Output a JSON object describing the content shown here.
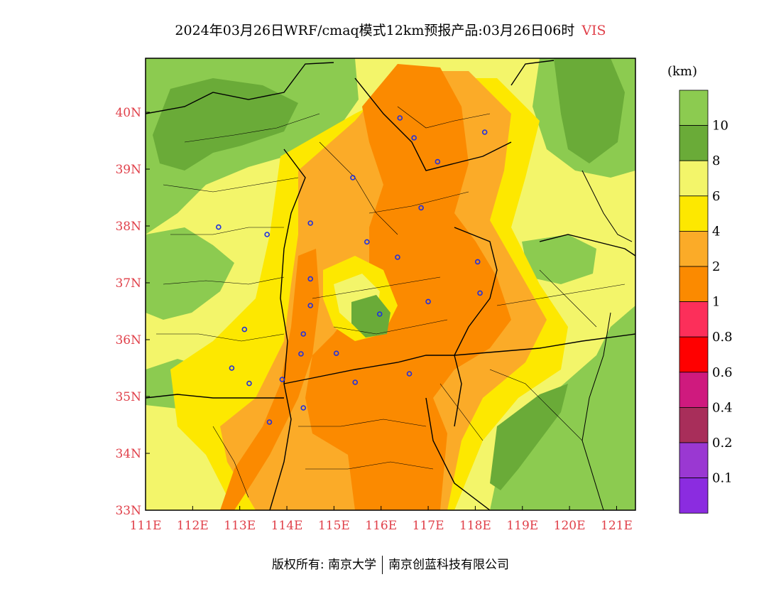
{
  "header": {
    "title": "2024年03月26日WRF/cmaq模式12km预报产品:03月26日06时",
    "variable": "VIS"
  },
  "map": {
    "lon_range": [
      111,
      121.4
    ],
    "lat_range": [
      33,
      40.95
    ],
    "x_ticks": [
      "111E",
      "112E",
      "113E",
      "114E",
      "115E",
      "116E",
      "117E",
      "118E",
      "119E",
      "120E",
      "121E"
    ],
    "y_ticks": [
      "33N",
      "34N",
      "35N",
      "36N",
      "37N",
      "38N",
      "39N",
      "40N"
    ],
    "tick_color": "#e0404a",
    "city_marker_color": "#2030e0",
    "city_markers": [
      {
        "lon": 116.4,
        "lat": 39.9
      },
      {
        "lon": 116.7,
        "lat": 39.55
      },
      {
        "lon": 117.2,
        "lat": 39.13
      },
      {
        "lon": 118.2,
        "lat": 39.65
      },
      {
        "lon": 115.4,
        "lat": 38.85
      },
      {
        "lon": 116.85,
        "lat": 38.32
      },
      {
        "lon": 112.55,
        "lat": 37.98
      },
      {
        "lon": 113.58,
        "lat": 37.85
      },
      {
        "lon": 114.5,
        "lat": 38.05
      },
      {
        "lon": 115.7,
        "lat": 37.72
      },
      {
        "lon": 116.35,
        "lat": 37.45
      },
      {
        "lon": 118.05,
        "lat": 37.37
      },
      {
        "lon": 114.5,
        "lat": 37.07
      },
      {
        "lon": 118.1,
        "lat": 36.82
      },
      {
        "lon": 117.0,
        "lat": 36.67
      },
      {
        "lon": 114.5,
        "lat": 36.6
      },
      {
        "lon": 115.97,
        "lat": 36.45
      },
      {
        "lon": 113.1,
        "lat": 36.18
      },
      {
        "lon": 114.35,
        "lat": 36.1
      },
      {
        "lon": 114.3,
        "lat": 35.75
      },
      {
        "lon": 115.05,
        "lat": 35.76
      },
      {
        "lon": 112.83,
        "lat": 35.5
      },
      {
        "lon": 116.6,
        "lat": 35.4
      },
      {
        "lon": 113.2,
        "lat": 35.23
      },
      {
        "lon": 113.9,
        "lat": 35.3
      },
      {
        "lon": 115.45,
        "lat": 35.25
      },
      {
        "lon": 114.35,
        "lat": 34.8
      },
      {
        "lon": 113.63,
        "lat": 34.55
      }
    ]
  },
  "legend": {
    "unit": "(km)",
    "bins": [
      {
        "label": "",
        "color": "#8ccb50"
      },
      {
        "label": "10",
        "color": "#6aab38"
      },
      {
        "label": "8",
        "color": "#f3f56a"
      },
      {
        "label": "6",
        "color": "#fde800"
      },
      {
        "label": "4",
        "color": "#fbab28"
      },
      {
        "label": "2",
        "color": "#fb8a00"
      },
      {
        "label": "1",
        "color": "#fc2f5a"
      },
      {
        "label": "0.8",
        "color": "#ff0000"
      },
      {
        "label": "0.6",
        "color": "#cf1a7e"
      },
      {
        "label": "0.4",
        "color": "#a82e5a"
      },
      {
        "label": "0.2",
        "color": "#9a38d2"
      },
      {
        "label": "0.1",
        "color": "#8b2ce0"
      }
    ]
  },
  "footer": {
    "copyright": "版权所有: 南京大学",
    "company": "南京创蓝科技有限公司"
  }
}
